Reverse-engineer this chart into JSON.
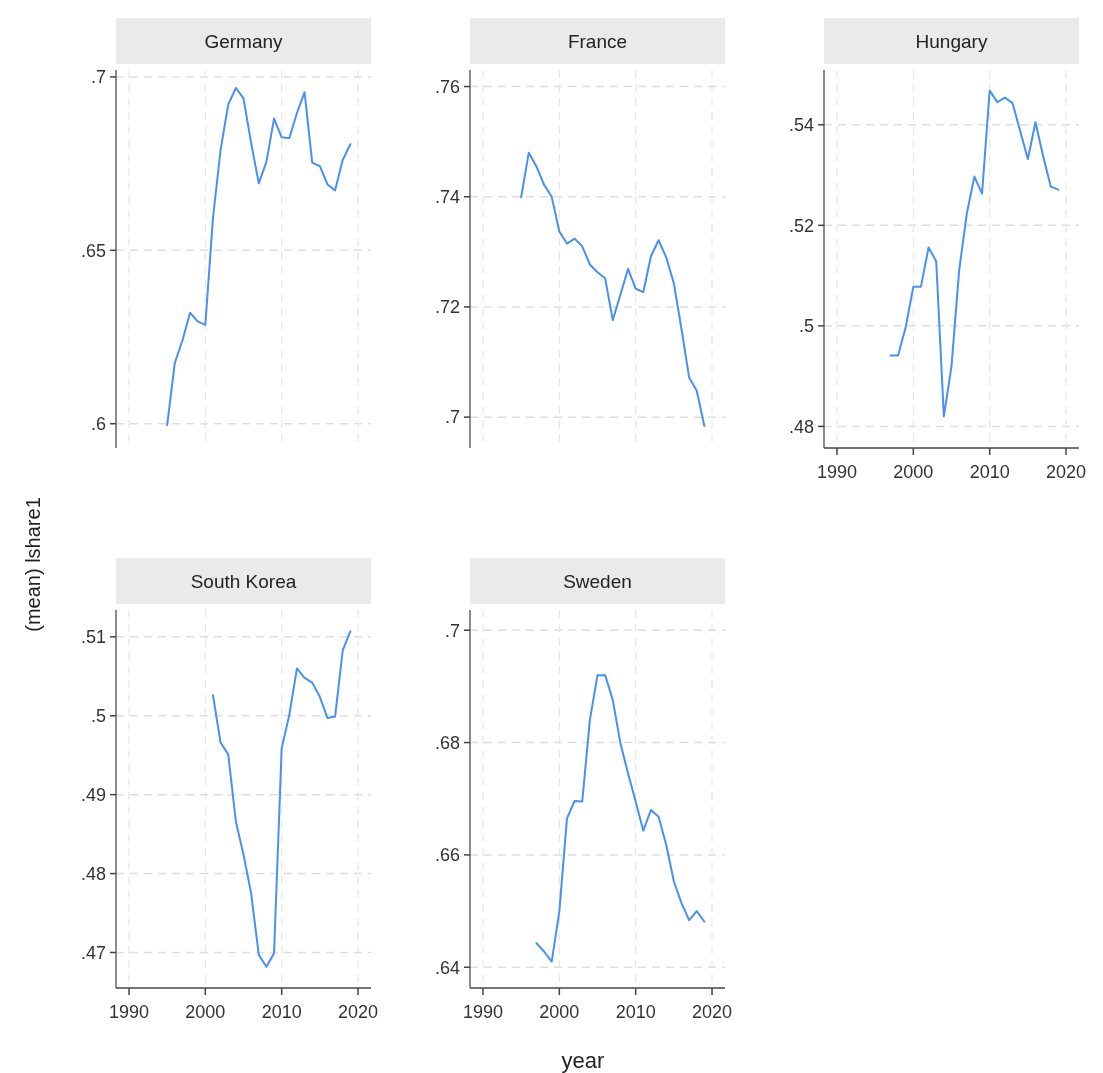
{
  "chart_data": [
    {
      "type": "line",
      "title": "Germany",
      "ylabel": "(mean) lshare1",
      "x": [
        1995,
        1996,
        1997,
        1998,
        1999,
        2000,
        2001,
        2002,
        2003,
        2004,
        2005,
        2006,
        2007,
        2008,
        2009,
        2010,
        2011,
        2012,
        2013,
        2014,
        2015,
        2016,
        2017,
        2018,
        2019
      ],
      "values": [
        0.5996,
        0.6175,
        0.624,
        0.632,
        0.6295,
        0.6285,
        0.6593,
        0.679,
        0.692,
        0.6968,
        0.6938,
        0.681,
        0.6693,
        0.6755,
        0.688,
        0.6826,
        0.6823,
        0.6896,
        0.6956,
        0.6753,
        0.6743,
        0.669,
        0.6673,
        0.6761,
        0.6806
      ],
      "color": "#4a90f0",
      "xlim": [
        1988.3,
        2021.7
      ],
      "ylim": [
        0.593,
        0.702
      ],
      "xticks": [
        1990,
        2000,
        2010,
        2020
      ],
      "yticks": [
        {
          "value": 0.6,
          "label": ".6"
        },
        {
          "value": 0.65,
          "label": ".65"
        },
        {
          "value": 0.7,
          "label": ".7"
        }
      ],
      "grid": true,
      "tick_labels": "y"
    },
    {
      "type": "line",
      "title": "France",
      "x": [
        1995,
        1996,
        1997,
        1998,
        1999,
        2000,
        2001,
        2002,
        2003,
        2004,
        2005,
        2006,
        2007,
        2008,
        2009,
        2010,
        2011,
        2012,
        2013,
        2014,
        2015,
        2016,
        2017,
        2018,
        2019
      ],
      "values": [
        0.7399,
        0.748,
        0.7455,
        0.7422,
        0.74,
        0.7337,
        0.7315,
        0.7324,
        0.731,
        0.7277,
        0.7263,
        0.7252,
        0.7176,
        0.7222,
        0.7269,
        0.7233,
        0.7227,
        0.7292,
        0.7321,
        0.729,
        0.7243,
        0.716,
        0.7072,
        0.7048,
        0.6984
      ],
      "color": "#4a90f0",
      "xlim": [
        1988.3,
        2021.7
      ],
      "ylim": [
        0.6944,
        0.763
      ],
      "xticks": [
        1990,
        2000,
        2010,
        2020
      ],
      "yticks": [
        {
          "value": 0.7,
          "label": ".7"
        },
        {
          "value": 0.72,
          "label": ".72"
        },
        {
          "value": 0.74,
          "label": ".74"
        },
        {
          "value": 0.76,
          "label": ".76"
        }
      ],
      "grid": true,
      "tick_labels": "y"
    },
    {
      "type": "line",
      "title": "Hungary",
      "x": [
        1997,
        1998,
        1999,
        2000,
        2001,
        2002,
        2003,
        2004,
        2005,
        2006,
        2007,
        2008,
        2009,
        2010,
        2011,
        2012,
        2013,
        2014,
        2015,
        2016,
        2017,
        2018,
        2019
      ],
      "values": [
        0.4941,
        0.4941,
        0.4997,
        0.5078,
        0.5078,
        0.5156,
        0.5128,
        0.482,
        0.492,
        0.511,
        0.5223,
        0.5297,
        0.5263,
        0.5468,
        0.5445,
        0.5454,
        0.5443,
        0.5387,
        0.5332,
        0.5405,
        0.5338,
        0.5277,
        0.5271
      ],
      "color": "#4a90f0",
      "xlim": [
        1988.3,
        2021.7
      ],
      "ylim": [
        0.4757,
        0.5509
      ],
      "xticks": [
        1990,
        2000,
        2010,
        2020
      ],
      "yticks": [
        {
          "value": 0.48,
          "label": ".48"
        },
        {
          "value": 0.5,
          "label": ".5"
        },
        {
          "value": 0.52,
          "label": ".52"
        },
        {
          "value": 0.54,
          "label": ".54"
        }
      ],
      "grid": true
    },
    {
      "type": "line",
      "title": "South Korea",
      "x": [
        2001,
        2002,
        2003,
        2004,
        2005,
        2006,
        2007,
        2008,
        2009,
        2010,
        2011,
        2012,
        2013,
        2014,
        2015,
        2016,
        2017,
        2018,
        2019
      ],
      "values": [
        0.5026,
        0.4966,
        0.4951,
        0.4866,
        0.4824,
        0.4775,
        0.4697,
        0.4682,
        0.4699,
        0.4959,
        0.5001,
        0.506,
        0.5048,
        0.5042,
        0.5024,
        0.4997,
        0.4999,
        0.5083,
        0.5107
      ],
      "color": "#4a90f0",
      "xlim": [
        1988.3,
        2021.7
      ],
      "ylim": [
        0.4655,
        0.5134
      ],
      "xticks": [
        1990,
        2000,
        2010,
        2020
      ],
      "yticks": [
        {
          "value": 0.47,
          "label": ".47"
        },
        {
          "value": 0.48,
          "label": ".48"
        },
        {
          "value": 0.49,
          "label": ".49"
        },
        {
          "value": 0.5,
          "label": ".5"
        },
        {
          "value": 0.51,
          "label": ".51"
        }
      ],
      "grid": true
    },
    {
      "type": "line",
      "title": "Sweden",
      "xlabel": "year",
      "x": [
        1997,
        1998,
        1999,
        2000,
        2001,
        2002,
        2003,
        2004,
        2005,
        2006,
        2007,
        2008,
        2009,
        2010,
        2011,
        2012,
        2013,
        2014,
        2015,
        2016,
        2017,
        2018,
        2019
      ],
      "values": [
        0.6443,
        0.6428,
        0.641,
        0.6499,
        0.6665,
        0.6696,
        0.6695,
        0.684,
        0.692,
        0.692,
        0.6876,
        0.6799,
        0.6745,
        0.6695,
        0.6643,
        0.668,
        0.6668,
        0.6618,
        0.6553,
        0.6514,
        0.6484,
        0.65,
        0.6481
      ],
      "color": "#4a90f0",
      "xlim": [
        1988.3,
        2021.7
      ],
      "ylim": [
        0.6363,
        0.7036
      ],
      "xticks": [
        1990,
        2000,
        2010,
        2020
      ],
      "yticks": [
        {
          "value": 0.64,
          "label": ".64"
        },
        {
          "value": 0.66,
          "label": ".66"
        },
        {
          "value": 0.68,
          "label": ".68"
        },
        {
          "value": 0.7,
          "label": ".7"
        }
      ],
      "grid": true
    }
  ]
}
